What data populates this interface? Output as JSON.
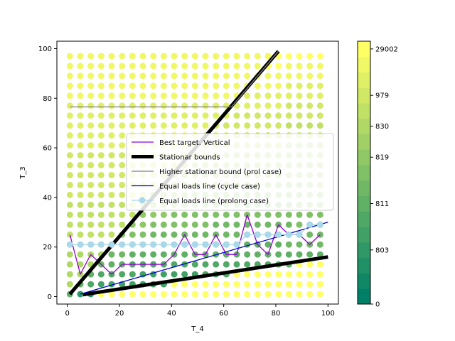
{
  "chart_data": {
    "type": "scatter",
    "xlabel": "T_4",
    "ylabel": "T_3",
    "xlim": [
      -4,
      104
    ],
    "ylim": [
      -3,
      103
    ],
    "x_ticks": [
      0,
      20,
      40,
      60,
      80,
      100
    ],
    "y_ticks": [
      0,
      20,
      40,
      60,
      80,
      100
    ],
    "grid": false,
    "legend_placement": "center-right",
    "scatter": {
      "x_start": 1,
      "x_step": 4,
      "x_count": 25,
      "y_start": 1,
      "y_step": 4,
      "y_count": 25,
      "colormap": "summer",
      "marker_size": 4.5
    },
    "series": [
      {
        "name": "Best target. Vertical",
        "color": "#9400d3",
        "line_width": 1.3,
        "x": [
          1,
          5,
          9,
          13,
          17,
          21,
          25,
          29,
          33,
          37,
          41,
          45,
          49,
          53,
          57,
          61,
          65,
          69,
          73,
          77,
          81,
          85,
          89,
          93,
          97
        ],
        "y": [
          25,
          9,
          17,
          13,
          9,
          13,
          13,
          13,
          13,
          13,
          17,
          25,
          17,
          17,
          25,
          17,
          17,
          33,
          21,
          17,
          29,
          25,
          25,
          21,
          25
        ]
      },
      {
        "name": "Stationar bounds",
        "color": "#000000",
        "line_width": 5,
        "segments": [
          {
            "x": [
              1,
              81
            ],
            "y": [
              1,
              99
            ]
          },
          {
            "x": [
              6,
              100
            ],
            "y": [
              0.8,
              16
            ]
          }
        ]
      },
      {
        "name": "Higher stationar bound (prol case)",
        "color": "#808080",
        "line_width": 1.3,
        "segments": [
          {
            "x": [
              1,
              63
            ],
            "y": [
              76.5,
              76.5
            ]
          },
          {
            "x": [
              63,
              81
            ],
            "y": [
              76.5,
              99
            ]
          }
        ]
      },
      {
        "name": "Equal loads line (cycle case)",
        "color": "#0000cd",
        "line_width": 1.3,
        "x": [
          5,
          100
        ],
        "y": [
          1,
          30
        ]
      },
      {
        "name": "Equal loads line (prolong case)",
        "color": "#a8d8ea",
        "line_width": 1.3,
        "marker": "circle",
        "x": [
          1,
          5,
          9,
          13,
          17,
          21,
          25,
          29,
          33,
          37,
          41,
          45,
          49,
          53,
          57,
          61,
          65,
          69,
          73,
          77,
          81,
          85,
          89,
          93,
          97
        ],
        "y": [
          21,
          21,
          21,
          21,
          21,
          21,
          21,
          21,
          21,
          21,
          21,
          21,
          21,
          21,
          21,
          21,
          21,
          25,
          25,
          25,
          25,
          25,
          25,
          29,
          29
        ]
      }
    ],
    "colorbar": {
      "tick_labels": [
        "0",
        "803",
        "811",
        "819",
        "830",
        "979",
        "29002"
      ],
      "colors": [
        "#008066",
        "#108866",
        "#209066",
        "#309866",
        "#40a066",
        "#50a866",
        "#60b066",
        "#70b866",
        "#80c066",
        "#90c866",
        "#a0d066",
        "#b0d866",
        "#c0e066",
        "#d0e866",
        "#e0f066",
        "#f0f866",
        "#ffff66"
      ]
    }
  }
}
